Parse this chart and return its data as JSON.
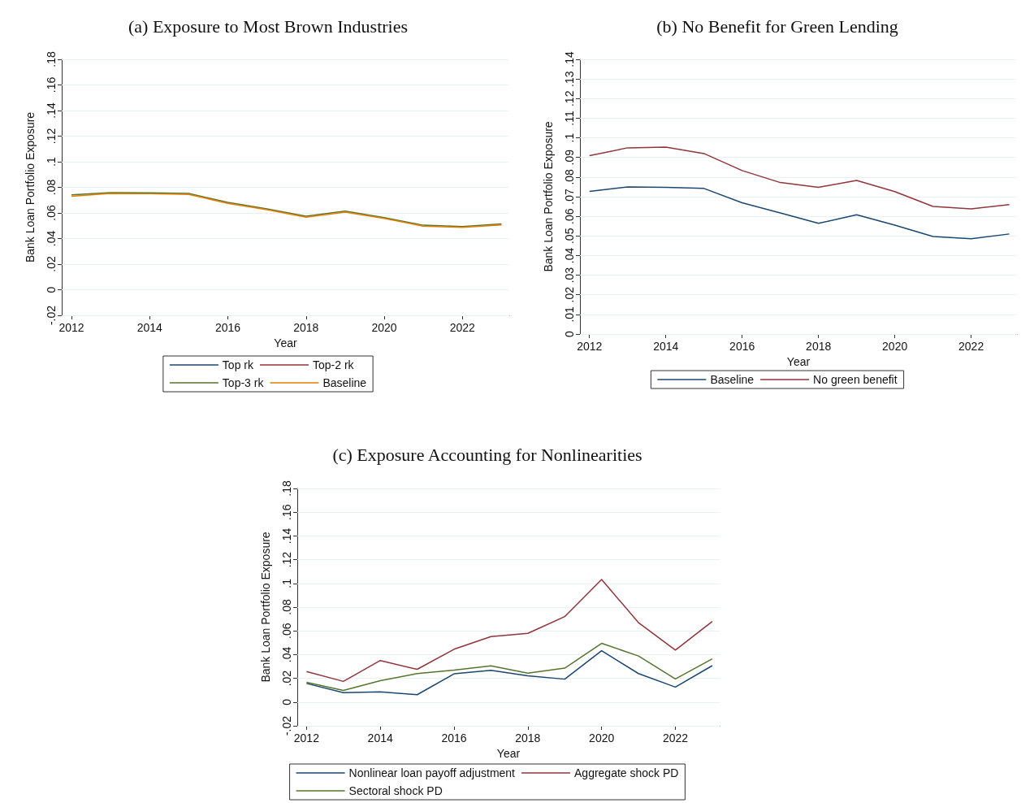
{
  "chart_data": [
    {
      "type": "line",
      "title": "(a) Exposure to Most Brown Industries",
      "xlabel": "Year",
      "ylabel": "Bank Loan Portfolio Exposure",
      "x": [
        2012,
        2013,
        2014,
        2015,
        2016,
        2017,
        2018,
        2019,
        2020,
        2021,
        2022,
        2023
      ],
      "xlim": [
        2011.75,
        2023.2
      ],
      "xticks": [
        2012,
        2014,
        2016,
        2018,
        2020,
        2022
      ],
      "ylim": [
        -0.02,
        0.18
      ],
      "yticks": [
        {
          "value": -0.02,
          "label": "-.02"
        },
        {
          "value": 0,
          "label": "0"
        },
        {
          "value": 0.02,
          "label": ".02"
        },
        {
          "value": 0.04,
          "label": ".04"
        },
        {
          "value": 0.06,
          "label": ".06"
        },
        {
          "value": 0.08,
          "label": ".08"
        },
        {
          "value": 0.1,
          "label": ".1"
        },
        {
          "value": 0.12,
          "label": ".12"
        },
        {
          "value": 0.14,
          "label": ".14"
        },
        {
          "value": 0.16,
          "label": ".16"
        },
        {
          "value": 0.18,
          "label": ".18"
        }
      ],
      "grid": "y",
      "legend": "bottom",
      "marker": "none",
      "series": [
        {
          "name": "Top rk",
          "color": "#1a476f",
          "values": [
            null,
            null,
            null,
            null,
            null,
            null,
            null,
            null,
            null,
            null,
            null,
            null
          ]
        },
        {
          "name": "Top-2 rk",
          "color": "#90353b",
          "values": [
            null,
            null,
            null,
            null,
            null,
            null,
            null,
            null,
            null,
            null,
            null,
            null
          ]
        },
        {
          "name": "Top-3 rk",
          "color": "#55752f",
          "values": [
            0.0742,
            0.0759,
            0.0757,
            0.0752,
            0.0682,
            0.0632,
            0.0574,
            0.0614,
            0.0564,
            0.0504,
            0.0494,
            0.0514
          ]
        },
        {
          "name": "Baseline",
          "color": "#e37e00",
          "values": [
            0.073,
            0.0752,
            0.075,
            0.0745,
            0.0675,
            0.0625,
            0.0567,
            0.0607,
            0.0557,
            0.0497,
            0.0487,
            0.0507
          ]
        }
      ]
    },
    {
      "type": "line",
      "title": "(b) No Benefit for Green Lending",
      "xlabel": "Year",
      "ylabel": "Bank Loan Portfolio Exposure",
      "x": [
        2012,
        2013,
        2014,
        2015,
        2016,
        2017,
        2018,
        2019,
        2020,
        2021,
        2022,
        2023
      ],
      "xlim": [
        2011.75,
        2023.2
      ],
      "xticks": [
        2012,
        2014,
        2016,
        2018,
        2020,
        2022
      ],
      "ylim": [
        0,
        0.14
      ],
      "yticks": [
        {
          "value": 0,
          "label": "0"
        },
        {
          "value": 0.01,
          "label": ".01"
        },
        {
          "value": 0.02,
          "label": ".02"
        },
        {
          "value": 0.03,
          "label": ".03"
        },
        {
          "value": 0.04,
          "label": ".04"
        },
        {
          "value": 0.05,
          "label": ".05"
        },
        {
          "value": 0.06,
          "label": ".06"
        },
        {
          "value": 0.07,
          "label": ".07"
        },
        {
          "value": 0.08,
          "label": ".08"
        },
        {
          "value": 0.09,
          "label": ".09"
        },
        {
          "value": 0.1,
          "label": ".1"
        },
        {
          "value": 0.11,
          "label": ".11"
        },
        {
          "value": 0.12,
          "label": ".12"
        },
        {
          "value": 0.13,
          "label": ".13"
        },
        {
          "value": 0.14,
          "label": ".14"
        }
      ],
      "grid": "y",
      "legend": "bottom",
      "marker": "none",
      "series": [
        {
          "name": "Baseline",
          "color": "#1a476f",
          "values": [
            0.0727,
            0.075,
            0.0748,
            0.0742,
            0.0669,
            0.0617,
            0.0564,
            0.0608,
            0.0555,
            0.0497,
            0.0486,
            0.051
          ]
        },
        {
          "name": "No green benefit",
          "color": "#90353b",
          "values": [
            0.0909,
            0.0949,
            0.0953,
            0.092,
            0.0833,
            0.0772,
            0.0748,
            0.0783,
            0.0726,
            0.065,
            0.0638,
            0.066
          ]
        }
      ]
    },
    {
      "type": "line",
      "title": "(c) Exposure Accounting for Nonlinearities",
      "xlabel": "Year",
      "ylabel": "Bank Loan Portfolio Exposure",
      "x": [
        2012,
        2013,
        2014,
        2015,
        2016,
        2017,
        2018,
        2019,
        2020,
        2021,
        2022,
        2023
      ],
      "xlim": [
        2011.75,
        2023.2
      ],
      "xticks": [
        2012,
        2014,
        2016,
        2018,
        2020,
        2022
      ],
      "ylim": [
        -0.02,
        0.18
      ],
      "yticks": [
        {
          "value": -0.02,
          "label": "-.02"
        },
        {
          "value": 0,
          "label": "0"
        },
        {
          "value": 0.02,
          "label": ".02"
        },
        {
          "value": 0.04,
          "label": ".04"
        },
        {
          "value": 0.06,
          "label": ".06"
        },
        {
          "value": 0.08,
          "label": ".08"
        },
        {
          "value": 0.1,
          "label": ".1"
        },
        {
          "value": 0.12,
          "label": ".12"
        },
        {
          "value": 0.14,
          "label": ".14"
        },
        {
          "value": 0.16,
          "label": ".16"
        },
        {
          "value": 0.18,
          "label": ".18"
        }
      ],
      "grid": "y",
      "legend": "bottom",
      "marker": "none",
      "series": [
        {
          "name": "Nonlinear loan payoff adjustment",
          "color": "#1a476f",
          "values": [
            0.0157,
            0.0079,
            0.0086,
            0.0062,
            0.0238,
            0.0267,
            0.0221,
            0.0193,
            0.0433,
            0.024,
            0.0126,
            0.0307
          ]
        },
        {
          "name": "Aggregate shock PD",
          "color": "#90353b",
          "values": [
            0.0257,
            0.0174,
            0.035,
            0.0276,
            0.0445,
            0.0552,
            0.0579,
            0.072,
            0.1033,
            0.0669,
            0.0438,
            0.0679
          ]
        },
        {
          "name": "Sectoral shock PD",
          "color": "#55752f",
          "values": [
            0.0167,
            0.0098,
            0.018,
            0.024,
            0.0269,
            0.0305,
            0.0243,
            0.0286,
            0.0495,
            0.0388,
            0.0195,
            0.0364
          ]
        }
      ]
    }
  ]
}
